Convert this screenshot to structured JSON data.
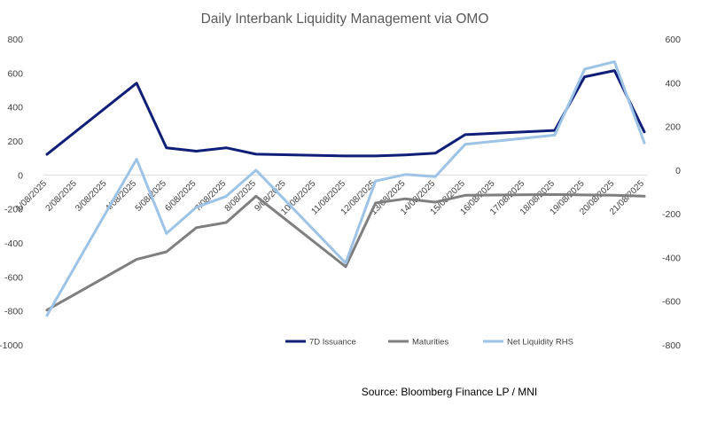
{
  "chart_data": {
    "type": "line",
    "title": "Daily Interbank Liquidity Management via OMO",
    "categories": [
      "1/08/2025",
      "2/08/2025",
      "3/08/2025",
      "4/08/2025",
      "5/08/2025",
      "6/08/2025",
      "7/08/2025",
      "8/08/2025",
      "9/08/2025",
      "10/08/2025",
      "11/08/2025",
      "12/08/2025",
      "13/08/2025",
      "14/08/2025",
      "15/08/2025",
      "16/08/2025",
      "17/08/2025",
      "18/08/2025",
      "19/08/2025",
      "20/08/2025",
      "21/08/2025"
    ],
    "left_axis": {
      "min": -1000,
      "max": 800,
      "step": 200,
      "ticks": [
        "800",
        "600",
        "400",
        "200",
        "0",
        "-200",
        "-400",
        "-600",
        "-800",
        "-1000"
      ]
    },
    "right_axis": {
      "min": -800,
      "max": 600,
      "step": 200,
      "ticks": [
        "600",
        "400",
        "200",
        "0",
        "-200",
        "-400",
        "-600",
        "-800"
      ]
    },
    "series": [
      {
        "name": "7D Issuance",
        "axis": "left",
        "color": "#0f1f78",
        "values": [
          121,
          null,
          null,
          540,
          160,
          140,
          160,
          122,
          null,
          null,
          112,
          112,
          118,
          128,
          237,
          null,
          null,
          262,
          578,
          614,
          253
        ]
      },
      {
        "name": "Maturities",
        "axis": "left",
        "color": "#7f7f7f",
        "values": [
          -795,
          null,
          null,
          -497,
          -452,
          -310,
          -280,
          -125,
          null,
          null,
          -540,
          -165,
          -140,
          -160,
          -120,
          null,
          null,
          -115,
          -118,
          -120,
          -125
        ]
      },
      {
        "name": "Net Liquidity RHS",
        "axis": "right",
        "color": "#9dc3e6",
        "values": [
          -665,
          null,
          null,
          50,
          -290,
          -170,
          -120,
          0,
          null,
          null,
          -425,
          -50,
          -20,
          -30,
          118,
          null,
          null,
          160,
          462,
          496,
          125
        ]
      }
    ],
    "legend": {
      "position": "bottom-right"
    },
    "source": "Source: Bloomberg Finance LP / MNI"
  }
}
